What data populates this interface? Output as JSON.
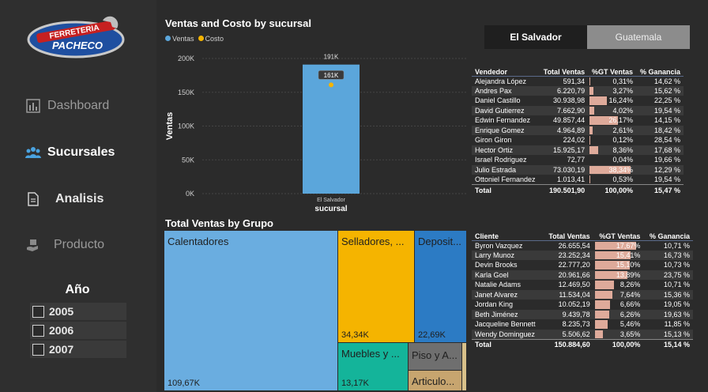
{
  "sidebar": {
    "logo_line1": "FERRETERIA",
    "logo_line2": "PACHECO",
    "nav": [
      {
        "label": "Dashboard",
        "icon": "bar-chart-icon"
      },
      {
        "label": "Sucursales",
        "icon": "people-icon"
      },
      {
        "label": "Analisis",
        "icon": "document-icon"
      },
      {
        "label": "Producto",
        "icon": "hand-box-icon"
      }
    ],
    "year_title": "Año",
    "years": [
      "2005",
      "2006",
      "2007"
    ]
  },
  "bar_chart": {
    "title": "Ventas and Costo by sucursal",
    "legend": [
      {
        "label": "Ventas",
        "color": "#5ba6db"
      },
      {
        "label": "Costo",
        "color": "#f5b400"
      }
    ]
  },
  "chart_data": {
    "type": "bar",
    "categories": [
      "El Salvador"
    ],
    "series": [
      {
        "name": "Ventas",
        "values": [
          191
        ]
      },
      {
        "name": "Costo",
        "values": [
          161
        ]
      }
    ],
    "data_labels": [
      "191K",
      "161K"
    ],
    "xlabel": "sucursal",
    "ylabel": "Ventas",
    "yticks": [
      "0K",
      "50K",
      "100K",
      "150K",
      "200K"
    ],
    "ylim": [
      0,
      200
    ],
    "unit": "K",
    "grid": true,
    "legend_position": "top-left"
  },
  "slicer": {
    "active": "El Salvador",
    "inactive": "Guatemala"
  },
  "vendedor_table": {
    "headers": [
      "Vendedor",
      "Total Ventas",
      "%GT Ventas",
      "% Ganancia"
    ],
    "rows": [
      {
        "name": "Alejandra López",
        "total": "591,34",
        "pct": "0,31%",
        "pct_val": 0.31,
        "gan": "14,62 %"
      },
      {
        "name": "Andres Pax",
        "total": "6.220,79",
        "pct": "3,27%",
        "pct_val": 3.27,
        "gan": "15,62 %"
      },
      {
        "name": "Daniel Castillo",
        "total": "30.938,98",
        "pct": "16,24%",
        "pct_val": 16.24,
        "gan": "22,25 %"
      },
      {
        "name": "David Gutierrez",
        "total": "7.662,90",
        "pct": "4,02%",
        "pct_val": 4.02,
        "gan": "19,54 %"
      },
      {
        "name": "Edwin Fernandez",
        "total": "49.857,44",
        "pct": "26,17%",
        "pct_val": 26.17,
        "gan": "14,15 %"
      },
      {
        "name": "Enrique Gomez",
        "total": "4.964,89",
        "pct": "2,61%",
        "pct_val": 2.61,
        "gan": "18,42 %"
      },
      {
        "name": "Giron Giron",
        "total": "224,02",
        "pct": "0,12%",
        "pct_val": 0.12,
        "gan": "28,54 %"
      },
      {
        "name": "Hector Ortiz",
        "total": "15.925,17",
        "pct": "8,36%",
        "pct_val": 8.36,
        "gan": "17,68 %"
      },
      {
        "name": "Israel Rodriguez",
        "total": "72,77",
        "pct": "0,04%",
        "pct_val": 0.04,
        "gan": "19,66 %"
      },
      {
        "name": "Julio Estrada",
        "total": "73.030,19",
        "pct": "38,34%",
        "pct_val": 38.34,
        "gan": "12,29 %"
      },
      {
        "name": "Ottoniel Fernandez",
        "total": "1.013,41",
        "pct": "0,53%",
        "pct_val": 0.53,
        "gan": "19,54 %"
      }
    ],
    "total": {
      "name": "Total",
      "total": "190.501,90",
      "pct": "100,00%",
      "gan": "15,47 %"
    }
  },
  "cliente_table": {
    "headers": [
      "Cliente",
      "Total Ventas",
      "%GT Ventas",
      "% Ganancia"
    ],
    "rows": [
      {
        "name": "Byron Vazquez",
        "total": "26.655,54",
        "pct": "17,67%",
        "pct_val": 17.67,
        "gan": "10,71 %"
      },
      {
        "name": "Larry Munoz",
        "total": "23.252,34",
        "pct": "15,41%",
        "pct_val": 15.41,
        "gan": "16,73 %"
      },
      {
        "name": "Devin Brooks",
        "total": "22.777,20",
        "pct": "15,10%",
        "pct_val": 15.1,
        "gan": "10,73 %"
      },
      {
        "name": "Karla Goel",
        "total": "20.961,66",
        "pct": "13,89%",
        "pct_val": 13.89,
        "gan": "23,75 %"
      },
      {
        "name": "Natalie Adams",
        "total": "12.469,50",
        "pct": "8,26%",
        "pct_val": 8.26,
        "gan": "10,71 %"
      },
      {
        "name": "Janet Alvarez",
        "total": "11.534,04",
        "pct": "7,64%",
        "pct_val": 7.64,
        "gan": "15,36 %"
      },
      {
        "name": "Jordan King",
        "total": "10.052,19",
        "pct": "6,66%",
        "pct_val": 6.66,
        "gan": "19,05 %"
      },
      {
        "name": "Beth Jiménez",
        "total": "9.439,78",
        "pct": "6,26%",
        "pct_val": 6.26,
        "gan": "19,63 %"
      },
      {
        "name": "Jacqueline Bennett",
        "total": "8.235,73",
        "pct": "5,46%",
        "pct_val": 5.46,
        "gan": "11,85 %"
      },
      {
        "name": "Wendy Dominguez",
        "total": "5.506,62",
        "pct": "3,65%",
        "pct_val": 3.65,
        "gan": "15,13 %"
      }
    ],
    "total": {
      "name": "Total",
      "total": "150.884,60",
      "pct": "100,00%",
      "gan": "15,14 %"
    }
  },
  "treemap": {
    "title": "Total Ventas by Grupo",
    "items": [
      {
        "name": "Calentadores",
        "value": "109,67K",
        "color": "#6aade0"
      },
      {
        "name": "Selladores, ...",
        "value": "34,34K",
        "color": "#f5b400"
      },
      {
        "name": "Deposit...",
        "value": "22,69K",
        "color": "#2c7bc4"
      },
      {
        "name": "Muebles y ...",
        "value": "13,17K",
        "color": "#14b49a"
      },
      {
        "name": "Piso y A...",
        "value": "",
        "color": "#6f6f6f"
      },
      {
        "name": "Articulo...",
        "value": "",
        "color": "#c7a56f"
      }
    ]
  }
}
